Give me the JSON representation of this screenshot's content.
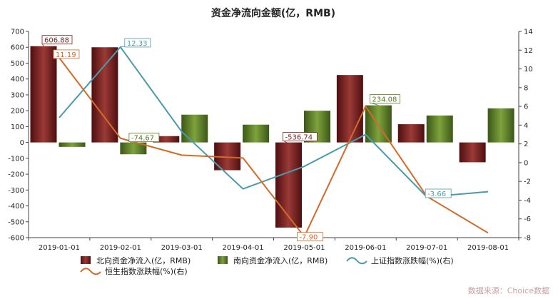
{
  "chart_data": {
    "type": "bar",
    "title": "资金净流向金额(亿，RMB)",
    "categories": [
      "2019-01-01",
      "2019-02-01",
      "2019-03-01",
      "2019-04-01",
      "2019-05-01",
      "2019-06-01",
      "2019-07-01",
      "2019-08-01"
    ],
    "ylim_left": [
      -600,
      700
    ],
    "yticks_left": [
      -600,
      -500,
      -400,
      -300,
      -200,
      -100,
      0,
      100,
      200,
      300,
      400,
      500,
      600,
      700
    ],
    "ylim_right": [
      -8,
      14
    ],
    "yticks_right": [
      -8,
      -6,
      -4,
      -2,
      0,
      2,
      4,
      6,
      8,
      10,
      12,
      14
    ],
    "grid": false,
    "legend_position": "bottom",
    "series": [
      {
        "name": "北向资金净流入(亿，RMB)",
        "type": "bar",
        "axis": "left",
        "color": "#7a1f1f",
        "values": [
          606.88,
          600,
          40,
          -175,
          -536.74,
          425,
          115,
          -125
        ]
      },
      {
        "name": "南向资金净流入(亿，RMB)",
        "type": "bar",
        "axis": "left",
        "color": "#5a7a26",
        "values": [
          -28,
          -74.67,
          175,
          112,
          200,
          234.08,
          170,
          215
        ]
      },
      {
        "name": "上证指数涨跌幅(%)(右)",
        "type": "line",
        "axis": "right",
        "color": "#4a9aad",
        "values": [
          4.8,
          12.33,
          3.3,
          -2.8,
          -0.4,
          3.0,
          -3.66,
          -3.1
        ]
      },
      {
        "name": "恒生指数涨跌幅(%)(右)",
        "type": "line",
        "axis": "right",
        "color": "#d26a2a",
        "values": [
          11.19,
          2.6,
          0.8,
          0.5,
          -7.9,
          6.0,
          -3.6,
          -7.5
        ]
      }
    ],
    "annotations": [
      {
        "text": "606.88",
        "series": 0,
        "index": 0
      },
      {
        "text": "-536.74",
        "series": 0,
        "index": 4
      },
      {
        "text": "-74.67",
        "series": 1,
        "index": 1
      },
      {
        "text": "234.08",
        "series": 1,
        "index": 5
      },
      {
        "text": "12.33",
        "series": 2,
        "index": 1
      },
      {
        "text": "-3.66",
        "series": 2,
        "index": 6
      },
      {
        "text": "11.19",
        "series": 3,
        "index": 0
      },
      {
        "text": "-7.90",
        "series": 3,
        "index": 4
      }
    ]
  },
  "source_note": "数据来源：Choice数据"
}
